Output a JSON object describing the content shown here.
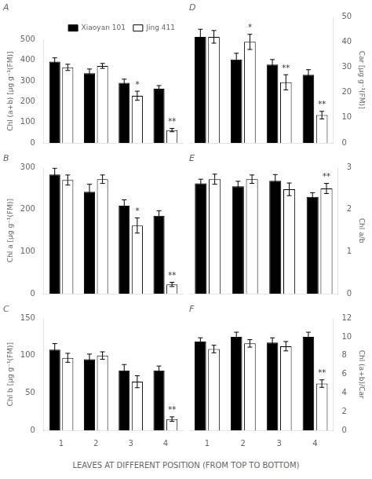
{
  "xlabel": "LEAVES AT DIFFERENT POSITION (FROM TOP TO BOTTOM)",
  "chart_data": [
    {
      "type": "bar",
      "title": "A",
      "ylabel": "Chl (a+b) [μg g⁻¹(FM)]",
      "categories": [
        "1",
        "2",
        "3",
        "4"
      ],
      "series": [
        {
          "name": "Xiaoyan 101",
          "color": "#000000",
          "values": [
            393,
            337,
            290,
            262
          ],
          "errors": [
            18,
            20,
            18,
            15
          ]
        },
        {
          "name": "Jing 411",
          "color": "#ffffff",
          "values": [
            365,
            372,
            228,
            62
          ],
          "errors": [
            15,
            12,
            22,
            8
          ]
        }
      ],
      "ylim": [
        0,
        500
      ],
      "yticks": [
        0,
        100,
        200,
        300,
        400,
        500
      ],
      "grid": false,
      "legend": "upper right",
      "tick_labels": "y",
      "annotations": [
        {
          "category": "3",
          "series": "Jing 411",
          "text": "*"
        },
        {
          "category": "4",
          "series": "Jing 411",
          "text": "**"
        }
      ]
    },
    {
      "type": "bar",
      "title": "B",
      "ylabel": "Chl a [μg g⁻¹(FM)]",
      "categories": [
        "1",
        "2",
        "3",
        "4"
      ],
      "series": [
        {
          "name": "Xiaoyan 101",
          "color": "#000000",
          "values": [
            283,
            242,
            209,
            185
          ],
          "errors": [
            15,
            18,
            14,
            12
          ]
        },
        {
          "name": "Jing 411",
          "color": "#ffffff",
          "values": [
            270,
            272,
            162,
            22
          ],
          "errors": [
            12,
            10,
            18,
            5
          ]
        }
      ],
      "ylim": [
        0,
        300
      ],
      "yticks": [
        0,
        100,
        200,
        300
      ],
      "grid": false,
      "tick_labels": "y",
      "annotations": [
        {
          "category": "3",
          "series": "Jing 411",
          "text": "*"
        },
        {
          "category": "4",
          "series": "Jing 411",
          "text": "**"
        }
      ]
    },
    {
      "type": "bar",
      "title": "C",
      "ylabel": "Chl b [μg g⁻¹(FM)]",
      "categories": [
        "1",
        "2",
        "3",
        "4"
      ],
      "series": [
        {
          "name": "Xiaoyan 101",
          "color": "#000000",
          "values": [
            108,
            95,
            80,
            80
          ],
          "errors": [
            8,
            7,
            8,
            6
          ]
        },
        {
          "name": "Jing 411",
          "color": "#ffffff",
          "values": [
            97,
            100,
            65,
            15
          ],
          "errors": [
            6,
            5,
            8,
            3
          ]
        }
      ],
      "ylim": [
        0,
        150
      ],
      "yticks": [
        0,
        50,
        100,
        150
      ],
      "grid": false,
      "annotations": [
        {
          "category": "4",
          "series": "Jing 411",
          "text": "**"
        }
      ]
    },
    {
      "type": "bar",
      "title": "D",
      "ylabel": "Car [μg g⁻¹(FM)]",
      "categories": [
        "1",
        "2",
        "3",
        "4"
      ],
      "series": [
        {
          "name": "Xiaoyan 101",
          "color": "#000000",
          "values": [
            42,
            33,
            31,
            27
          ],
          "errors": [
            3,
            2.5,
            2,
            2
          ]
        },
        {
          "name": "Jing 411",
          "color": "#ffffff",
          "values": [
            42,
            40,
            24,
            11
          ],
          "errors": [
            2.5,
            3,
            3,
            1.5
          ]
        }
      ],
      "ylim": [
        0,
        50
      ],
      "yticks": [
        0,
        10,
        20,
        30,
        40,
        50
      ],
      "grid": false,
      "tick_labels": "y",
      "annotations": [
        {
          "category": "2",
          "series": "Jing 411",
          "text": "*"
        },
        {
          "category": "3",
          "series": "Jing 411",
          "text": "**"
        },
        {
          "category": "4",
          "series": "Jing 411",
          "text": "**"
        }
      ]
    },
    {
      "type": "bar",
      "title": "E",
      "ylabel": "Chl a/b",
      "categories": [
        "1",
        "2",
        "3",
        "4"
      ],
      "series": [
        {
          "name": "Xiaoyan 101",
          "color": "#000000",
          "values": [
            2.62,
            2.55,
            2.68,
            2.3
          ],
          "errors": [
            0.1,
            0.12,
            0.15,
            0.1
          ]
        },
        {
          "name": "Jing 411",
          "color": "#ffffff",
          "values": [
            2.72,
            2.72,
            2.48,
            2.5
          ],
          "errors": [
            0.12,
            0.1,
            0.15,
            0.12
          ]
        }
      ],
      "ylim": [
        0,
        3
      ],
      "yticks": [
        0,
        1,
        2,
        3
      ],
      "grid": false,
      "tick_labels": "y",
      "annotations": [
        {
          "category": "4",
          "series": "Jing 411",
          "text": "**"
        }
      ]
    },
    {
      "type": "bar",
      "title": "F",
      "ylabel": "Chl (a+b)/Car",
      "categories": [
        "1",
        "2",
        "3",
        "4"
      ],
      "series": [
        {
          "name": "Xiaoyan 101",
          "color": "#000000",
          "values": [
            9.5,
            10.0,
            9.4,
            10.0
          ],
          "errors": [
            0.4,
            0.5,
            0.5,
            0.5
          ]
        },
        {
          "name": "Jing 411",
          "color": "#ffffff",
          "values": [
            8.7,
            9.3,
            9.0,
            5.0
          ],
          "errors": [
            0.4,
            0.4,
            0.5,
            0.4
          ]
        }
      ],
      "ylim": [
        0,
        12
      ],
      "yticks": [
        0,
        2,
        4,
        6,
        8,
        10,
        12
      ],
      "grid": false,
      "annotations": [
        {
          "category": "4",
          "series": "Jing 411",
          "text": "**"
        }
      ]
    }
  ]
}
